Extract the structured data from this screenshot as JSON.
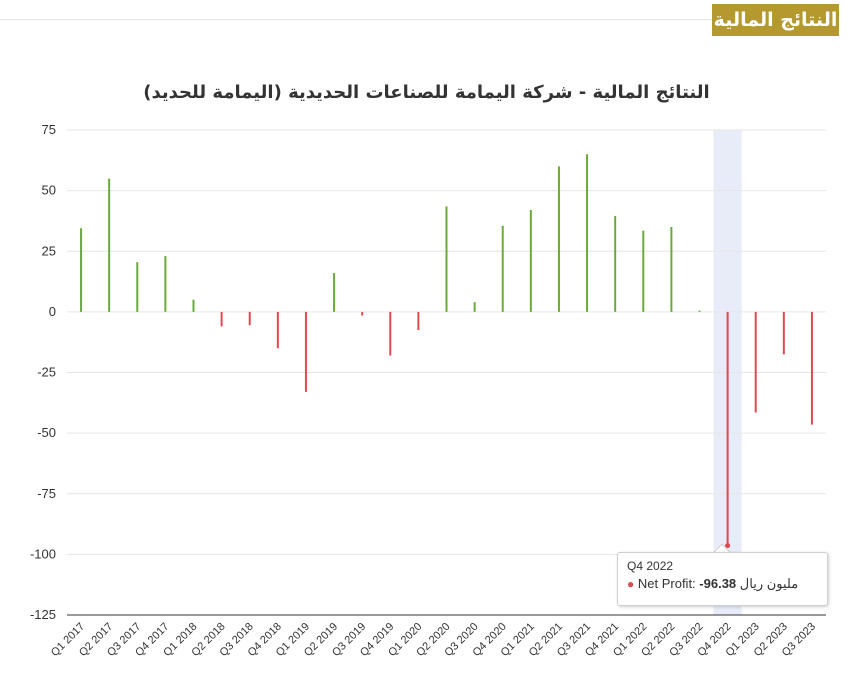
{
  "section_header": {
    "label": "النتائج المالية"
  },
  "chart_data": {
    "type": "bar",
    "title": "النتائج المالية - شركة اليمامة للصناعات الحديدية (اليمامة للحديد)",
    "categories": [
      "Q1 2017",
      "Q2 2017",
      "Q3 2017",
      "Q4 2017",
      "Q1 2018",
      "Q2 2018",
      "Q3 2018",
      "Q4 2018",
      "Q1 2019",
      "Q2 2019",
      "Q3 2019",
      "Q4 2019",
      "Q1 2020",
      "Q2 2020",
      "Q3 2020",
      "Q4 2020",
      "Q1 2021",
      "Q2 2021",
      "Q3 2021",
      "Q4 2021",
      "Q1 2022",
      "Q2 2022",
      "Q3 2022",
      "Q4 2022",
      "Q1 2023",
      "Q2 2023",
      "Q3 2023"
    ],
    "series": [
      {
        "name": "Net Profit",
        "values": [
          34.5,
          55,
          20.5,
          23,
          5,
          -6,
          -5.5,
          -15,
          -33,
          16,
          -1.5,
          -18,
          -7.5,
          43.5,
          4,
          35.5,
          42,
          60,
          65,
          39.5,
          33.5,
          35,
          0.5,
          -96.38,
          -41.5,
          -17.5,
          -46.5
        ]
      }
    ],
    "ylim": [
      -125,
      75
    ],
    "yticks": [
      75,
      50,
      25,
      0,
      -25,
      -50,
      -75,
      -100,
      -125
    ],
    "grid": true,
    "colors": {
      "positive": "#6aaa3c",
      "negative": "#e0494f",
      "highlight_band": "#e8ecf9"
    },
    "highlighted_category": "Q4 2022",
    "tooltip": {
      "header": "Q4 2022",
      "series_label": "Net Profit:",
      "value": "-96.38",
      "unit": "مليون ريال"
    }
  }
}
